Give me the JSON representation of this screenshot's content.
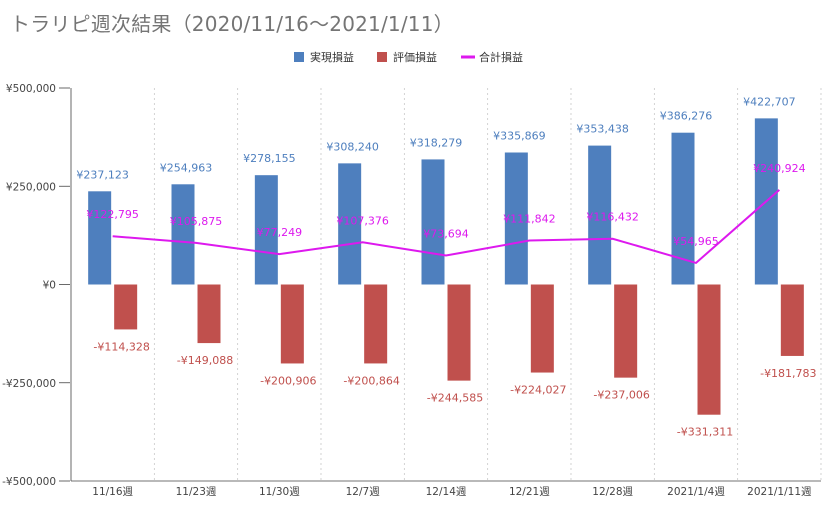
{
  "page": {
    "title": "トラリピ週次結果（2020/11/16～2021/1/11）"
  },
  "legend": {
    "position": "top-center",
    "items": [
      {
        "label": "実現損益",
        "color": "#4e7fbe",
        "marker": "square"
      },
      {
        "label": "評価損益",
        "color": "#c0504d",
        "marker": "square"
      },
      {
        "label": "合計損益",
        "color": "#dd19ee",
        "marker": "line"
      }
    ]
  },
  "chart_data": {
    "type": "bar",
    "title": "トラリピ週次結果（2020/11/16～2021/1/11）",
    "categories": [
      "11/16週",
      "11/23週",
      "11/30週",
      "12/7週",
      "12/14週",
      "12/21週",
      "12/28週",
      "2021/1/4週",
      "2021/1/11週"
    ],
    "series": [
      {
        "name": "実現損益",
        "kind": "bar",
        "color": "#4e7fbe",
        "label_color": "#4e7fbe",
        "values": [
          237123,
          254963,
          278155,
          308240,
          318279,
          335869,
          353438,
          386276,
          422707
        ],
        "labels": [
          "¥237,123",
          "¥254,963",
          "¥278,155",
          "¥308,240",
          "¥318,279",
          "¥335,869",
          "¥353,438",
          "¥386,276",
          "¥422,707"
        ]
      },
      {
        "name": "評価損益",
        "kind": "bar",
        "color": "#c0504d",
        "label_color": "#c0504d",
        "values": [
          -114328,
          -149088,
          -200906,
          -200864,
          -244585,
          -224027,
          -237006,
          -331311,
          -181783
        ],
        "labels": [
          "-¥114,328",
          "-¥149,088",
          "-¥200,906",
          "-¥200,864",
          "-¥244,585",
          "-¥224,027",
          "-¥237,006",
          "-¥331,311",
          "-¥181,783"
        ]
      },
      {
        "name": "合計損益",
        "kind": "line",
        "color": "#dd19ee",
        "label_color": "#dd19ee",
        "values": [
          122795,
          105875,
          77249,
          107376,
          73694,
          111842,
          116432,
          54965,
          240924
        ],
        "labels": [
          "¥122,795",
          "¥105,875",
          "¥77,249",
          "¥107,376",
          "¥73,694",
          "¥111,842",
          "¥116,432",
          "¥54,965",
          "¥240,924"
        ]
      }
    ],
    "ylim": [
      -500000,
      500000
    ],
    "yticks": [
      500000,
      250000,
      0,
      -250000,
      -500000
    ],
    "ytick_labels": [
      "¥500,000",
      "¥250,000",
      "¥0",
      "-¥250,000",
      "-¥500,000"
    ],
    "xlabel": "",
    "ylabel": "",
    "grid": "vertical-dashed"
  }
}
